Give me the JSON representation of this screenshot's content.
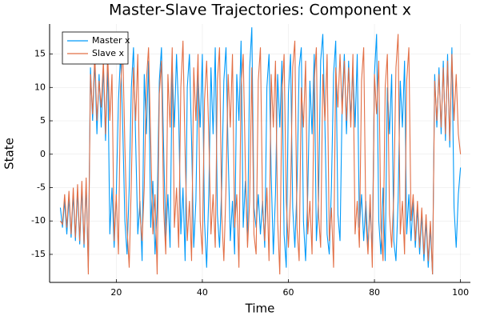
{
  "chart_data": {
    "type": "line",
    "title": "Master-Slave Trajectories: Component x",
    "x_label": "Time",
    "y_label": "State",
    "x": [
      7,
      7.5,
      8,
      8.5,
      9,
      9.5,
      10,
      10.5,
      11,
      11.5,
      12,
      12.5,
      13,
      13.5,
      14,
      14.5,
      15,
      15.5,
      16,
      16.5,
      17,
      17.5,
      18,
      18.5,
      19,
      19.5,
      20,
      20.5,
      21,
      21.5,
      22,
      22.5,
      23,
      23.5,
      24,
      24.5,
      25,
      25.5,
      26,
      26.5,
      27,
      27.5,
      28,
      28.5,
      29,
      29.5,
      30,
      30.5,
      31,
      31.5,
      32,
      32.5,
      33,
      33.5,
      34,
      34.5,
      35,
      35.5,
      36,
      36.5,
      37,
      37.5,
      38,
      38.5,
      39,
      39.5,
      40,
      40.5,
      41,
      41.5,
      42,
      42.5,
      43,
      43.5,
      44,
      44.5,
      45,
      45.5,
      46,
      46.5,
      47,
      47.5,
      48,
      48.5,
      49,
      49.5,
      50,
      50.5,
      51,
      51.5,
      52,
      52.5,
      53,
      53.5,
      54,
      54.5,
      55,
      55.5,
      56,
      56.5,
      57,
      57.5,
      58,
      58.5,
      59,
      59.5,
      60,
      60.5,
      61,
      61.5,
      62,
      62.5,
      63,
      63.5,
      64,
      64.5,
      65,
      65.5,
      66,
      66.5,
      67,
      67.5,
      68,
      68.5,
      69,
      69.5,
      70,
      70.5,
      71,
      71.5,
      72,
      72.5,
      73,
      73.5,
      74,
      74.5,
      75,
      75.5,
      76,
      76.5,
      77,
      77.5,
      78,
      78.5,
      79,
      79.5,
      80,
      80.5,
      81,
      81.5,
      82,
      82.5,
      83,
      83.5,
      84,
      84.5,
      85,
      85.5,
      86,
      86.5,
      87,
      87.5,
      88,
      88.5,
      89,
      89.5,
      90,
      90.5,
      91,
      91.5,
      92,
      92.5,
      93,
      93.5,
      94,
      94.5,
      95,
      95.5,
      96,
      96.5,
      97,
      97.5,
      98,
      98.5,
      99,
      99.5,
      100
    ],
    "series": [
      {
        "name": "Master x",
        "color": "#009af9",
        "values": [
          -8,
          -11,
          -7,
          -12,
          -6.5,
          -12.5,
          -6,
          -13,
          -5.5,
          -13.5,
          -5,
          -14,
          -4.5,
          -17,
          13,
          5,
          14,
          3,
          12,
          4,
          13,
          2,
          14,
          -12,
          -5,
          -14,
          -6,
          8,
          15,
          4,
          -10,
          -15,
          -5,
          10,
          16,
          2,
          -12,
          -7,
          -16,
          12,
          3,
          14,
          -11,
          -4,
          -15,
          -8,
          11,
          16,
          1,
          -13,
          -6,
          -14,
          13,
          4,
          15,
          6,
          -12,
          -5,
          -16,
          10,
          15,
          2,
          -14,
          -7,
          12,
          4,
          15,
          -10,
          -17,
          -6,
          13,
          3,
          16,
          -9,
          -14,
          -5,
          11,
          16,
          0,
          -13,
          -7,
          -15,
          12,
          5,
          17,
          -11,
          -4,
          -13,
          13,
          19,
          -8,
          -11,
          -6,
          -12,
          -7,
          -14,
          10,
          15,
          -3,
          -15,
          -6,
          12,
          4,
          14,
          -12,
          -17,
          9,
          15,
          -8,
          -14,
          -5,
          13,
          16,
          -10,
          -16,
          -6,
          11,
          3,
          15,
          -13,
          -7,
          14,
          18,
          4,
          -12,
          -15,
          -5,
          12,
          17,
          -9,
          -13,
          8,
          15,
          3,
          14,
          5,
          13,
          4,
          15,
          -11,
          -6,
          -13,
          -7,
          -14,
          -8,
          -15,
          12,
          18,
          -10,
          -15,
          -5,
          -16,
          10,
          3,
          12,
          -13,
          -16,
          -7,
          11,
          4,
          14,
          -12,
          -6,
          -13,
          -7,
          -14,
          -8,
          -15,
          -9,
          -16,
          -10,
          -17,
          -11,
          -18,
          12,
          4,
          13,
          3,
          14,
          2,
          15,
          1,
          16,
          -8,
          -14,
          -6,
          -2
        ]
      },
      {
        "name": "Slave x",
        "color": "#e26f46",
        "values": [
          -10,
          -10.5,
          -6,
          -11,
          -5.5,
          -12,
          -5,
          -12.5,
          -4.5,
          -13,
          -4,
          -13.5,
          -3.5,
          -18,
          12,
          6,
          15,
          5,
          11,
          7,
          14,
          3,
          15,
          5,
          12,
          -13,
          -6,
          -15,
          10,
          16,
          1,
          -11,
          -17,
          -4,
          13,
          5,
          15,
          -9,
          -13,
          -5,
          11,
          16,
          2,
          -12,
          -6,
          -18,
          9,
          14,
          -8,
          -15,
          12,
          4,
          16,
          -11,
          -5,
          -14,
          10,
          17,
          0,
          -13,
          -7,
          -16,
          13,
          5,
          15,
          -10,
          -15,
          8,
          14,
          3,
          -12,
          -6,
          -14,
          11,
          16,
          -9,
          -16,
          -5,
          12,
          4,
          15,
          -11,
          -6,
          -17,
          10,
          15,
          -2,
          -14,
          -7,
          13,
          -12,
          -15,
          11,
          16,
          -8,
          -13,
          -5,
          -16,
          12,
          4,
          14,
          -10,
          -18,
          9,
          15,
          -7,
          -14,
          -6,
          13,
          17,
          -11,
          -16,
          10,
          4,
          14,
          -12,
          -7,
          -15,
          11,
          16,
          -9,
          -14,
          12,
          5,
          15,
          -13,
          -8,
          -17,
          13,
          7,
          15,
          6,
          14,
          5,
          13,
          4,
          15,
          -12,
          -7,
          -14,
          11,
          16,
          -10,
          -15,
          -6,
          -17,
          12,
          6,
          14,
          -11,
          -16,
          10,
          15,
          -9,
          -14,
          -6,
          13,
          18,
          -12,
          -7,
          -15,
          11,
          16,
          -10,
          -6,
          -13,
          -7,
          -14,
          -8,
          -15,
          -9,
          -16,
          -10,
          -18,
          11,
          5,
          12,
          4,
          13,
          3,
          14,
          2,
          15,
          5,
          12,
          3,
          0
        ]
      }
    ],
    "xlim": [
      4.5,
      102.3
    ],
    "ylim": [
      -19.2,
      19.5
    ],
    "xticks": [
      20,
      40,
      60,
      80,
      100
    ],
    "yticks": [
      -15,
      -10,
      -5,
      0,
      5,
      10,
      15
    ],
    "grid": true,
    "legend": "top-left"
  }
}
